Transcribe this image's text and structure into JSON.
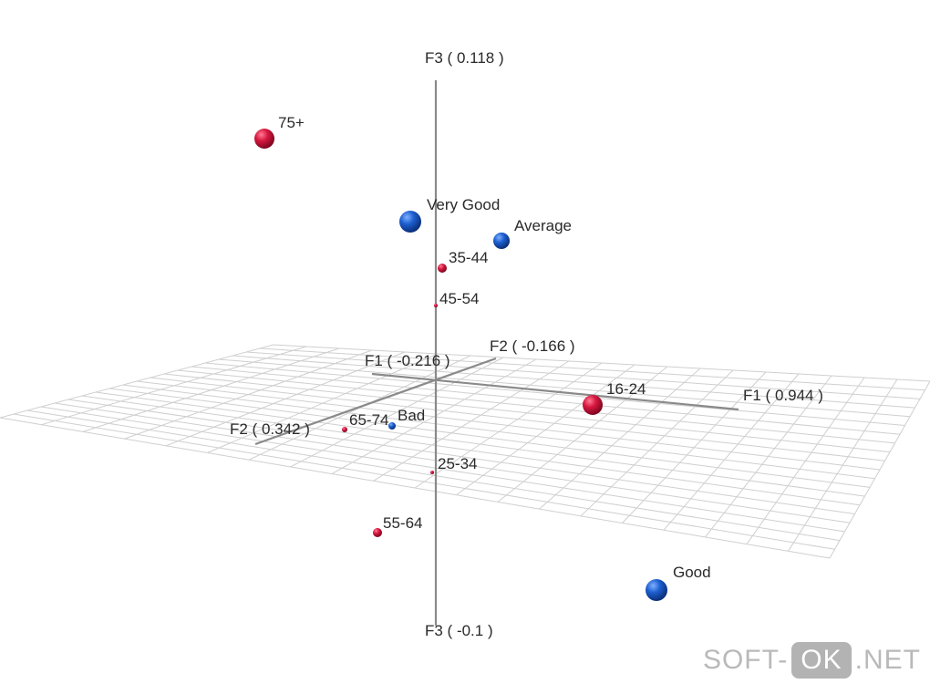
{
  "chart_data": {
    "type": "scatter",
    "title": "",
    "axes": {
      "f1": {
        "neg_label": "F1 ( -0.216 )",
        "pos_label": "F1 ( 0.944 )",
        "range": [
          -0.216,
          0.944
        ]
      },
      "f2": {
        "neg_label": "F2 ( -0.166 )",
        "pos_label": "F2 ( 0.342 )",
        "range": [
          -0.166,
          0.342
        ]
      },
      "f3": {
        "neg_label": "F3 ( -0.1 )",
        "pos_label": "F3 ( 0.118 )",
        "range": [
          -0.1,
          0.118
        ]
      }
    },
    "grid": "on (floor plane)",
    "colors": {
      "age_group": "#d8173f",
      "rating": "#1d5fd0",
      "axis": "#8a8a8a",
      "grid": "#cfcfcf"
    },
    "series": [
      {
        "group": "age",
        "points": [
          {
            "label": "75+"
          },
          {
            "label": "35-44"
          },
          {
            "label": "45-54"
          },
          {
            "label": "16-24"
          },
          {
            "label": "65-74"
          },
          {
            "label": "25-34"
          },
          {
            "label": "55-64"
          }
        ]
      },
      {
        "group": "rating",
        "points": [
          {
            "label": "Very Good"
          },
          {
            "label": "Average"
          },
          {
            "label": "Bad"
          },
          {
            "label": "Good"
          }
        ]
      }
    ]
  },
  "watermark": {
    "left": "SOFT-",
    "badge": "OK",
    "right": ".NET"
  }
}
